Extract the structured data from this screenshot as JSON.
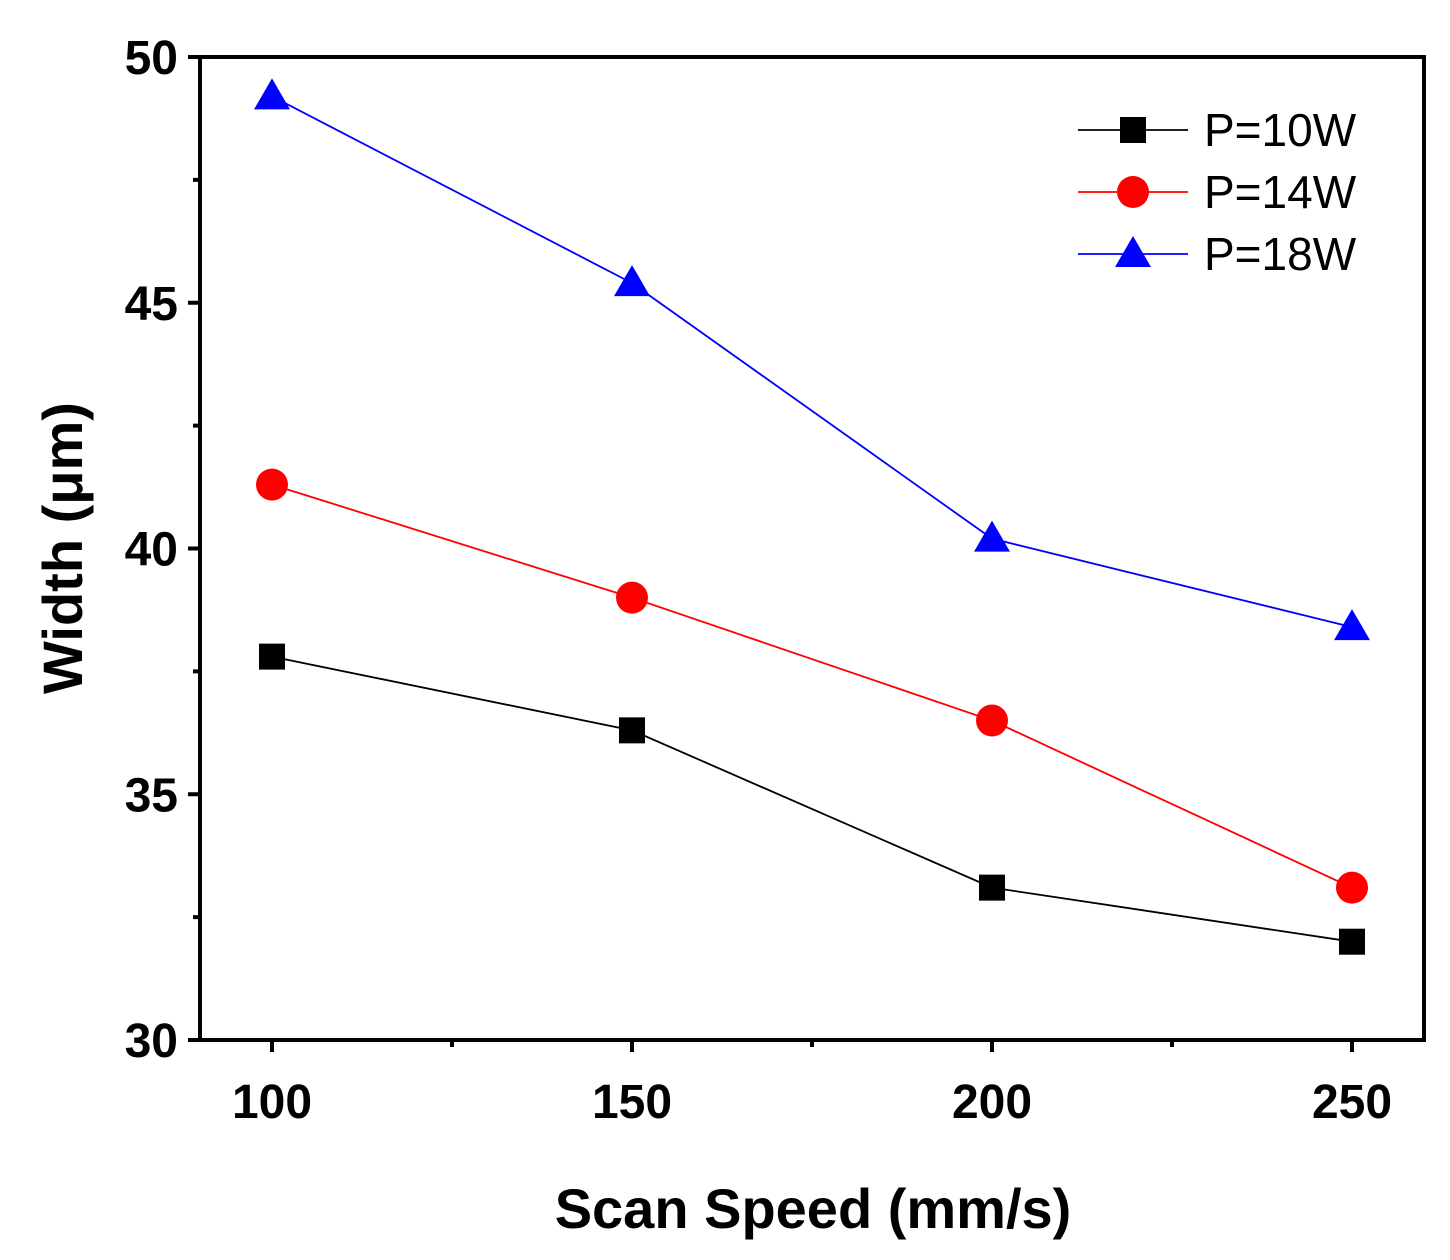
{
  "chart_data": {
    "type": "line",
    "title": "",
    "xlabel": "Scan Speed (mm/s)",
    "ylabel": "Width (μm)",
    "xlim": [
      90,
      260
    ],
    "ylim": [
      30,
      50
    ],
    "xticks": [
      100,
      150,
      200,
      250
    ],
    "xtick_labels": [
      "100",
      "150",
      "200",
      "250"
    ],
    "yticks": [
      30,
      35,
      40,
      45,
      50
    ],
    "ytick_labels": [
      "30",
      "35",
      "40",
      "45",
      "50"
    ],
    "x_minor_ticks": [
      125,
      175,
      225
    ],
    "y_minor_ticks": [
      32.5,
      37.5,
      42.5,
      47.5
    ],
    "grid": false,
    "legend_position": "top-right",
    "x": [
      100,
      150,
      200,
      250
    ],
    "series": [
      {
        "name": "P=10W",
        "values": [
          37.8,
          36.3,
          33.1,
          32.0
        ],
        "color": "#000000",
        "marker": "square"
      },
      {
        "name": "P=14W",
        "values": [
          41.3,
          39.0,
          36.5,
          33.1
        ],
        "color": "#ff0000",
        "marker": "circle"
      },
      {
        "name": "P=18W",
        "values": [
          49.2,
          45.4,
          40.2,
          38.4
        ],
        "color": "#0000ff",
        "marker": "triangle"
      }
    ]
  }
}
